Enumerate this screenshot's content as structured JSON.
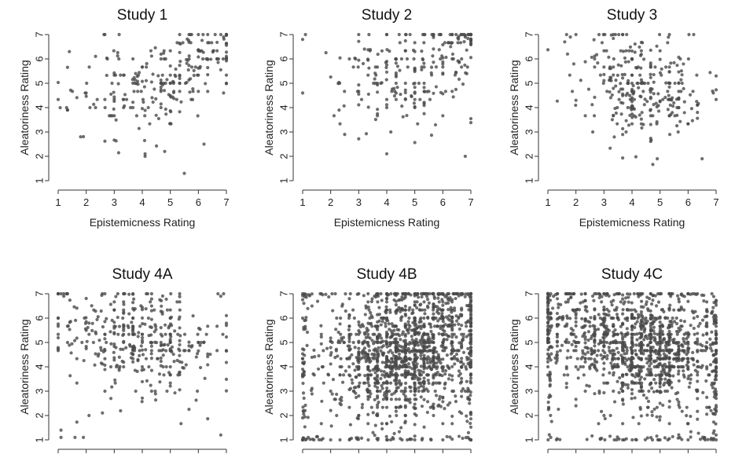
{
  "figure": {
    "point_color": "#4a4a4a",
    "description_note": "Six scatter panels; point clouds are a representative reconstruction of visible density."
  },
  "chart_data": [
    {
      "id": "study1",
      "type": "scatter",
      "title": "Study 1",
      "xlabel": "Epistemicness Rating",
      "ylabel": "Aleatoriness Rating",
      "xlim": [
        1,
        7
      ],
      "ylim": [
        1,
        7
      ],
      "xticks": [
        1,
        2,
        3,
        4,
        5,
        6,
        7
      ],
      "yticks": [
        1,
        2,
        3,
        4,
        5,
        6,
        7
      ],
      "show_xlabel": true,
      "show_xticklabels": true,
      "n_points": 260,
      "seed": 11,
      "clusters": [
        {
          "weight": 0.55,
          "cx": 4.7,
          "cy": 5.0,
          "sx": 1.1,
          "sy": 0.9,
          "rho": 0.45
        },
        {
          "weight": 0.25,
          "cx": 6.3,
          "cy": 6.2,
          "sx": 0.6,
          "sy": 0.6,
          "rho": 0.2
        },
        {
          "weight": 0.2,
          "cx": 3.2,
          "cy": 4.8,
          "sx": 1.2,
          "sy": 1.1,
          "rho": 0.1
        }
      ],
      "fixed_points": [
        {
          "x": 5.5,
          "y": 1.3
        },
        {
          "x": 4.1,
          "y": 2.0
        },
        {
          "x": 4.1,
          "y": 2.1
        },
        {
          "x": 4.8,
          "y": 2.2
        },
        {
          "x": 1.8,
          "y": 2.8
        },
        {
          "x": 1.3,
          "y": 4.0
        },
        {
          "x": 1.4,
          "y": 6.3
        },
        {
          "x": 6.9,
          "y": 4.6
        },
        {
          "x": 6.2,
          "y": 2.5
        },
        {
          "x": 6.8,
          "y": 7.0
        },
        {
          "x": 7.0,
          "y": 7.0
        },
        {
          "x": 6.6,
          "y": 7.0
        },
        {
          "x": 6.9,
          "y": 6.9
        }
      ]
    },
    {
      "id": "study2",
      "type": "scatter",
      "title": "Study 2",
      "xlabel": "Epistemicness Rating",
      "ylabel": "Aleatoriness Rating",
      "xlim": [
        1,
        7
      ],
      "ylim": [
        1,
        7
      ],
      "xticks": [
        1,
        2,
        3,
        4,
        5,
        6,
        7
      ],
      "yticks": [
        1,
        2,
        3,
        4,
        5,
        6,
        7
      ],
      "show_xlabel": true,
      "show_xticklabels": true,
      "n_points": 250,
      "seed": 23,
      "clusters": [
        {
          "weight": 0.7,
          "cx": 4.8,
          "cy": 5.2,
          "sx": 1.2,
          "sy": 1.1,
          "rho": 0.2
        },
        {
          "weight": 0.15,
          "cx": 6.5,
          "cy": 6.6,
          "sx": 0.5,
          "sy": 0.5,
          "rho": 0.1
        },
        {
          "weight": 0.15,
          "cx": 3.3,
          "cy": 5.5,
          "sx": 1.1,
          "sy": 1.2,
          "rho": 0.0
        }
      ],
      "fixed_points": [
        {
          "x": 1.0,
          "y": 4.6
        },
        {
          "x": 1.0,
          "y": 6.8
        },
        {
          "x": 1.1,
          "y": 7.0
        },
        {
          "x": 2.3,
          "y": 3.9
        },
        {
          "x": 2.5,
          "y": 2.9
        },
        {
          "x": 6.8,
          "y": 2.0
        },
        {
          "x": 6.9,
          "y": 7.0
        },
        {
          "x": 7.0,
          "y": 7.0
        },
        {
          "x": 6.8,
          "y": 6.9
        },
        {
          "x": 7.0,
          "y": 6.8
        }
      ]
    },
    {
      "id": "study3",
      "type": "scatter",
      "title": "Study 3",
      "xlabel": "Epistemicness Rating",
      "ylabel": "Aleatoriness Rating",
      "xlim": [
        1,
        7
      ],
      "ylim": [
        1,
        7
      ],
      "xticks": [
        1,
        2,
        3,
        4,
        5,
        6,
        7
      ],
      "yticks": [
        1,
        2,
        3,
        4,
        5,
        6,
        7
      ],
      "show_xlabel": true,
      "show_xticklabels": true,
      "n_points": 300,
      "seed": 37,
      "clusters": [
        {
          "weight": 0.75,
          "cx": 4.5,
          "cy": 4.6,
          "sx": 1.0,
          "sy": 1.0,
          "rho": -0.15
        },
        {
          "weight": 0.25,
          "cx": 3.5,
          "cy": 5.6,
          "sx": 1.2,
          "sy": 1.0,
          "rho": 0.0
        }
      ],
      "fixed_points": [
        {
          "x": 1.6,
          "y": 6.7
        },
        {
          "x": 1.7,
          "y": 6.2
        },
        {
          "x": 1.8,
          "y": 6.9
        },
        {
          "x": 2.0,
          "y": 4.3
        },
        {
          "x": 2.6,
          "y": 3.0
        },
        {
          "x": 4.9,
          "y": 1.9
        },
        {
          "x": 6.5,
          "y": 1.9
        },
        {
          "x": 6.9,
          "y": 4.6
        },
        {
          "x": 7.0,
          "y": 5.3
        },
        {
          "x": 6.2,
          "y": 7.0
        }
      ]
    },
    {
      "id": "study4a",
      "type": "scatter",
      "title": "Study 4A",
      "xlabel": "",
      "ylabel": "Aleatoriness Rating",
      "xlim": [
        1,
        7
      ],
      "ylim": [
        1,
        7
      ],
      "xticks": [
        1,
        2,
        3,
        4,
        5,
        6,
        7
      ],
      "yticks": [
        1,
        2,
        3,
        4,
        5,
        6,
        7
      ],
      "show_xlabel": false,
      "show_xticklabels": false,
      "n_points": 400,
      "seed": 41,
      "clusters": [
        {
          "weight": 0.8,
          "cx": 4.3,
          "cy": 4.9,
          "sx": 1.3,
          "sy": 1.1,
          "rho": -0.2
        },
        {
          "weight": 0.2,
          "cx": 2.5,
          "cy": 5.8,
          "sx": 1.2,
          "sy": 1.0,
          "rho": 0.0
        }
      ],
      "fixed_points": [
        {
          "x": 1.1,
          "y": 1.1
        },
        {
          "x": 1.1,
          "y": 1.4
        },
        {
          "x": 1.6,
          "y": 1.1
        },
        {
          "x": 1.9,
          "y": 1.1
        },
        {
          "x": 2.1,
          "y": 2.0
        },
        {
          "x": 6.8,
          "y": 1.2
        },
        {
          "x": 6.7,
          "y": 7.0
        },
        {
          "x": 6.8,
          "y": 6.9
        },
        {
          "x": 6.9,
          "y": 7.0
        },
        {
          "x": 1.2,
          "y": 6.9
        },
        {
          "x": 1.3,
          "y": 7.0
        },
        {
          "x": 1.2,
          "y": 7.0
        }
      ]
    },
    {
      "id": "study4b",
      "type": "scatter",
      "title": "Study 4B",
      "xlabel": "",
      "ylabel": "Aleatoriness Rating",
      "xlim": [
        1,
        7
      ],
      "ylim": [
        1,
        7
      ],
      "xticks": [
        1,
        2,
        3,
        4,
        5,
        6,
        7
      ],
      "yticks": [
        1,
        2,
        3,
        4,
        5,
        6,
        7
      ],
      "show_xlabel": false,
      "show_xticklabels": false,
      "n_points": 1500,
      "seed": 53,
      "clusters": [
        {
          "weight": 0.65,
          "cx": 4.6,
          "cy": 4.5,
          "sx": 1.2,
          "sy": 1.1,
          "rho": 0.05
        },
        {
          "weight": 0.2,
          "cx": 4.0,
          "cy": 4.0,
          "sx": 1.8,
          "sy": 1.8,
          "rho": 0.0
        },
        {
          "weight": 0.15,
          "cx": 5.8,
          "cy": 6.0,
          "sx": 1.0,
          "sy": 0.8,
          "rho": 0.0
        }
      ],
      "edge_points": 140,
      "fixed_points": [
        {
          "x": 1.0,
          "y": 1.0
        },
        {
          "x": 1.1,
          "y": 1.0
        },
        {
          "x": 1.2,
          "y": 1.1
        },
        {
          "x": 1.0,
          "y": 7.0
        },
        {
          "x": 7.0,
          "y": 7.0
        },
        {
          "x": 6.9,
          "y": 7.0
        },
        {
          "x": 7.0,
          "y": 1.0
        },
        {
          "x": 6.9,
          "y": 1.1
        }
      ]
    },
    {
      "id": "study4c",
      "type": "scatter",
      "title": "Study 4C",
      "xlabel": "",
      "ylabel": "Aleatoriness Rating",
      "xlim": [
        1,
        7
      ],
      "ylim": [
        1,
        7
      ],
      "xticks": [
        1,
        2,
        3,
        4,
        5,
        6,
        7
      ],
      "yticks": [
        1,
        2,
        3,
        4,
        5,
        6,
        7
      ],
      "show_xlabel": false,
      "show_xticklabels": false,
      "n_points": 1300,
      "seed": 67,
      "clusters": [
        {
          "weight": 0.55,
          "cx": 4.9,
          "cy": 4.6,
          "sx": 1.1,
          "sy": 1.0,
          "rho": -0.1
        },
        {
          "weight": 0.25,
          "cx": 2.6,
          "cy": 5.6,
          "sx": 1.3,
          "sy": 1.0,
          "rho": -0.1
        },
        {
          "weight": 0.2,
          "cx": 4.5,
          "cy": 4.2,
          "sx": 1.8,
          "sy": 1.8,
          "rho": 0.0
        }
      ],
      "edge_points": 150,
      "fixed_points": [
        {
          "x": 1.0,
          "y": 7.0
        },
        {
          "x": 1.1,
          "y": 7.0
        },
        {
          "x": 1.2,
          "y": 6.9
        },
        {
          "x": 1.0,
          "y": 6.8
        },
        {
          "x": 7.0,
          "y": 1.0
        },
        {
          "x": 6.9,
          "y": 1.0
        },
        {
          "x": 7.0,
          "y": 1.2
        },
        {
          "x": 1.1,
          "y": 1.1
        }
      ]
    }
  ]
}
